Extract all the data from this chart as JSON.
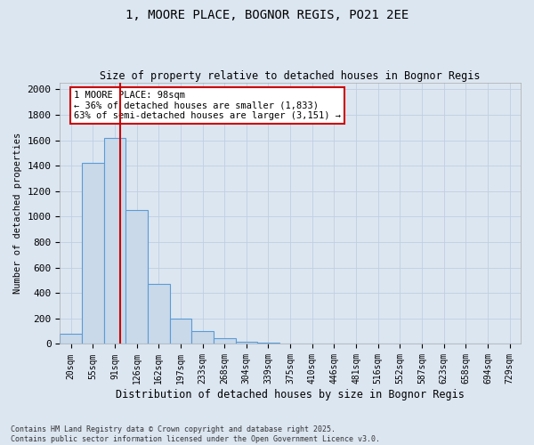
{
  "title_line1": "1, MOORE PLACE, BOGNOR REGIS, PO21 2EE",
  "title_line2": "Size of property relative to detached houses in Bognor Regis",
  "xlabel": "Distribution of detached houses by size in Bognor Regis",
  "ylabel": "Number of detached properties",
  "categories": [
    "20sqm",
    "55sqm",
    "91sqm",
    "126sqm",
    "162sqm",
    "197sqm",
    "233sqm",
    "268sqm",
    "304sqm",
    "339sqm",
    "375sqm",
    "410sqm",
    "446sqm",
    "481sqm",
    "516sqm",
    "552sqm",
    "587sqm",
    "623sqm",
    "658sqm",
    "694sqm",
    "729sqm"
  ],
  "values": [
    80,
    1420,
    1620,
    1050,
    470,
    200,
    100,
    45,
    20,
    10,
    5,
    3,
    2,
    1,
    1,
    0,
    0,
    0,
    0,
    0,
    0
  ],
  "bar_color": "#c9d9ea",
  "bar_edge_color": "#5b9bd5",
  "grid_color": "#c0cfe0",
  "background_color": "#dce6f1",
  "vline_x_index": 2.25,
  "vline_color": "#cc0000",
  "annotation_text": "1 MOORE PLACE: 98sqm\n← 36% of detached houses are smaller (1,833)\n63% of semi-detached houses are larger (3,151) →",
  "annotation_box_color": "#ffffff",
  "annotation_box_edge": "#cc0000",
  "ylim": [
    0,
    2050
  ],
  "yticks": [
    0,
    200,
    400,
    600,
    800,
    1000,
    1200,
    1400,
    1600,
    1800,
    2000
  ],
  "footer_line1": "Contains HM Land Registry data © Crown copyright and database right 2025.",
  "footer_line2": "Contains public sector information licensed under the Open Government Licence v3.0."
}
